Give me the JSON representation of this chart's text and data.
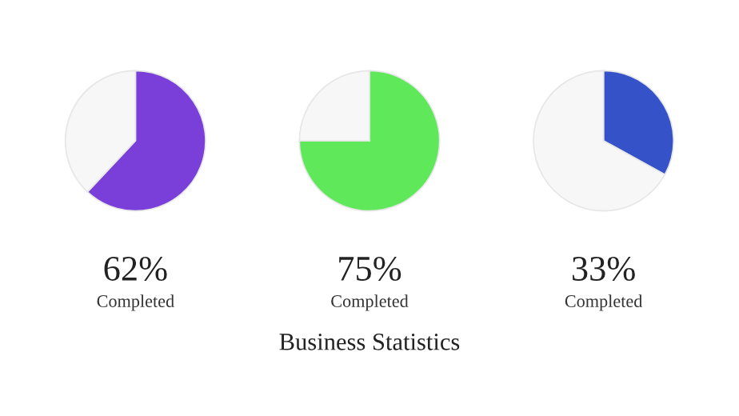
{
  "chart_data": [
    {
      "type": "pie",
      "categories": [
        null,
        null
      ],
      "values": [
        62,
        38
      ],
      "colors": [
        "#7a3fd8",
        "#f7f7f7"
      ],
      "annotations": [
        "62%",
        "Completed"
      ]
    },
    {
      "type": "pie",
      "categories": [
        null,
        null
      ],
      "values": [
        75,
        25
      ],
      "colors": [
        "#5ee85a",
        "#f7f7f7"
      ],
      "annotations": [
        "75%",
        "Completed"
      ],
      "title": "Business Statistics"
    },
    {
      "type": "pie",
      "categories": [
        null,
        null
      ],
      "values": [
        33,
        67
      ],
      "colors": [
        "#3552c8",
        "#f7f7f7"
      ],
      "annotations": [
        "33%",
        "Completed"
      ]
    }
  ]
}
